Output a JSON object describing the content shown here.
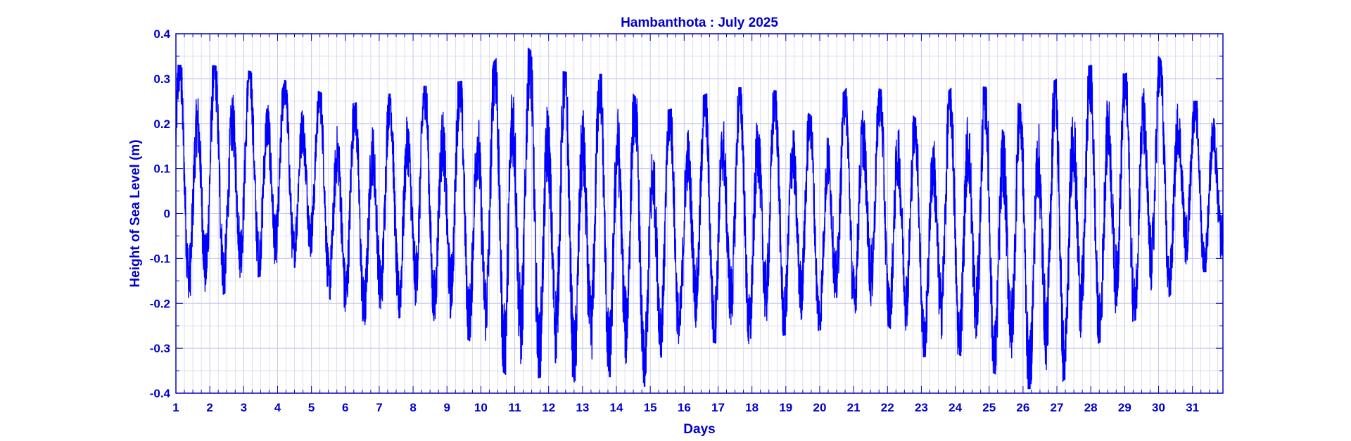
{
  "colors": {
    "primary": "#0000ff",
    "axis_text": "#0000cc",
    "grid": "#c8c8e8"
  },
  "chart_data": {
    "type": "line",
    "title": "Hambanthota : July 2025",
    "xlabel": "Days",
    "ylabel": "Height of Sea Level (m)",
    "xlim": [
      1,
      31.9
    ],
    "ylim": [
      -0.4,
      0.4
    ],
    "grid": true,
    "x_ticks": [
      1,
      2,
      3,
      4,
      5,
      6,
      7,
      8,
      9,
      10,
      11,
      12,
      13,
      14,
      15,
      16,
      17,
      18,
      19,
      20,
      21,
      22,
      23,
      24,
      25,
      26,
      27,
      28,
      29,
      30,
      31
    ],
    "x_tick_labels": [
      "1",
      "2",
      "3",
      "4",
      "5",
      "6",
      "7",
      "8",
      "9",
      "10",
      "11",
      "12",
      "13",
      "14",
      "15",
      "16",
      "17",
      "18",
      "19",
      "20",
      "21",
      "22",
      "23",
      "24",
      "25",
      "26",
      "27",
      "28",
      "29",
      "30",
      "31"
    ],
    "y_ticks": [
      -0.4,
      -0.3,
      -0.2,
      -0.1,
      0,
      0.1,
      0.2,
      0.3,
      0.4
    ],
    "y_tick_labels": [
      "-0.4",
      "-0.3",
      "-0.2",
      "-0.1",
      "0",
      "0.1",
      "0.2",
      "0.3",
      "0.4"
    ],
    "daily_envelope": {
      "days": [
        1,
        2,
        3,
        4,
        5,
        6,
        7,
        8,
        9,
        10,
        11,
        12,
        13,
        14,
        15,
        16,
        17,
        18,
        19,
        20,
        21,
        22,
        23,
        24,
        25,
        26,
        27,
        28,
        29,
        30,
        31
      ],
      "max": [
        0.33,
        0.33,
        0.32,
        0.3,
        0.28,
        0.24,
        0.26,
        0.28,
        0.29,
        0.3,
        0.4,
        0.32,
        0.31,
        0.31,
        0.22,
        0.24,
        0.28,
        0.28,
        0.27,
        0.2,
        0.3,
        0.27,
        0.2,
        0.29,
        0.28,
        0.24,
        0.3,
        0.33,
        0.31,
        0.35,
        0.25
      ],
      "min": [
        -0.18,
        -0.2,
        -0.15,
        -0.13,
        -0.11,
        -0.26,
        -0.25,
        -0.22,
        -0.25,
        -0.3,
        -0.38,
        -0.36,
        -0.38,
        -0.36,
        -0.39,
        -0.27,
        -0.29,
        -0.29,
        -0.27,
        -0.26,
        -0.22,
        -0.25,
        -0.32,
        -0.31,
        -0.35,
        -0.39,
        -0.39,
        -0.3,
        -0.25,
        -0.21,
        -0.13
      ]
    }
  }
}
